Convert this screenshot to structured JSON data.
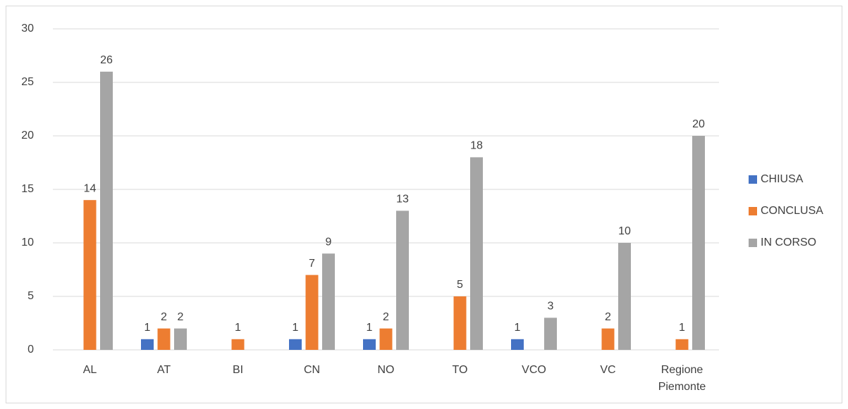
{
  "chart_data": {
    "type": "bar",
    "categories": [
      "AL",
      "AT",
      "BI",
      "CN",
      "NO",
      "TO",
      "VCO",
      "VC",
      "Regione Piemonte"
    ],
    "series": [
      {
        "name": "CHIUSA",
        "color": "#4472c4",
        "values": [
          null,
          1,
          null,
          1,
          1,
          null,
          1,
          null,
          null
        ]
      },
      {
        "name": "CONCLUSA",
        "color": "#ed7d31",
        "values": [
          14,
          2,
          1,
          7,
          2,
          5,
          null,
          2,
          1
        ]
      },
      {
        "name": "IN CORSO",
        "color": "#a5a5a5",
        "values": [
          26,
          2,
          null,
          9,
          13,
          18,
          3,
          10,
          20
        ]
      }
    ],
    "ylim": [
      0,
      30
    ],
    "yticks": [
      0,
      5,
      10,
      15,
      20,
      25,
      30
    ],
    "grid": true,
    "legend": "right"
  }
}
